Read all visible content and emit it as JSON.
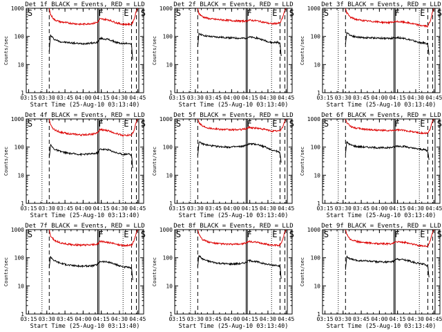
{
  "chart_data": {
    "type": "line",
    "layout": "3x3 grid",
    "y_axis": {
      "label": "Counts/sec",
      "scale": "log",
      "ylim": [
        1,
        1000
      ],
      "tick_labels": [
        "1",
        "10",
        "100",
        "1000"
      ]
    },
    "x_axis": {
      "label": "Start Time (25-Aug-10 03:13:40)",
      "range_minutes_after_0313": [
        0,
        97
      ],
      "tick_labels": [
        "03:15",
        "03:30",
        "03:45",
        "04:00",
        "04:15",
        "04:30",
        "04:45"
      ],
      "tick_minutes": [
        2,
        17,
        32,
        47,
        62,
        77,
        92
      ]
    },
    "colors": {
      "events": "#000000",
      "lld": "#dd0000"
    },
    "markers": [
      {
        "label": "S",
        "minute": 0.5,
        "style": "solid"
      },
      {
        "label": "F",
        "minute": 59,
        "style": "solid"
      },
      {
        "label": "E",
        "minute": 80,
        "style": "solid"
      },
      {
        "label": "S",
        "minute": 94,
        "style": "solid"
      }
    ],
    "vlines": [
      {
        "minute": 13,
        "style": "dotted"
      },
      {
        "minute": 19,
        "style": "dashed"
      },
      {
        "minute": 59,
        "style": "solid"
      },
      {
        "minute": 60,
        "style": "solid"
      },
      {
        "minute": 80,
        "style": "dotted"
      },
      {
        "minute": 87,
        "style": "dashed"
      },
      {
        "minute": 91,
        "style": "dashed"
      },
      {
        "minute": 93,
        "style": "solid"
      }
    ],
    "panels": [
      {
        "title": "Det 1f BLACK = Events, RED = LLD",
        "series": [
          {
            "name": "Events",
            "color": "#000000",
            "x": [
              19,
              20,
              23,
              28,
              35,
              45,
              55,
              59,
              61,
              68,
              75,
              80,
              85,
              87,
              88
            ],
            "y": [
              30,
              110,
              80,
              65,
              60,
              55,
              58,
              62,
              85,
              78,
              60,
              55,
              58,
              50,
              15
            ]
          },
          {
            "name": "LLD",
            "color": "#dd0000",
            "x": [
              19,
              20,
              23,
              28,
              35,
              45,
              55,
              59,
              61,
              68,
              75,
              80,
              87,
              89,
              91,
              92
            ],
            "y": [
              1000,
              600,
              400,
              330,
              300,
              270,
              290,
              320,
              420,
              390,
              300,
              270,
              270,
              400,
              800,
              1000
            ]
          }
        ]
      },
      {
        "title": "Det 2f BLACK = Events, RED = LLD",
        "series": [
          {
            "name": "Events",
            "color": "#000000",
            "x": [
              19,
              20,
              23,
              28,
              35,
              45,
              55,
              59,
              61,
              68,
              75,
              80,
              85,
              87,
              88
            ],
            "y": [
              40,
              130,
              110,
              100,
              95,
              90,
              85,
              88,
              95,
              88,
              70,
              60,
              62,
              55,
              20
            ]
          },
          {
            "name": "LLD",
            "color": "#dd0000",
            "x": [
              19,
              20,
              23,
              28,
              35,
              45,
              55,
              59,
              61,
              68,
              75,
              80,
              87,
              89,
              91,
              92
            ],
            "y": [
              1000,
              650,
              500,
              430,
              400,
              370,
              350,
              350,
              380,
              360,
              310,
              280,
              300,
              450,
              850,
              1000
            ]
          }
        ]
      },
      {
        "title": "Det 3f BLACK = Events, RED = LLD",
        "series": [
          {
            "name": "Events",
            "color": "#000000",
            "x": [
              19,
              20,
              23,
              28,
              35,
              45,
              55,
              59,
              61,
              68,
              75,
              80,
              85,
              87,
              88
            ],
            "y": [
              50,
              140,
              110,
              95,
              90,
              88,
              85,
              88,
              92,
              85,
              70,
              60,
              58,
              52,
              22
            ]
          },
          {
            "name": "LLD",
            "color": "#dd0000",
            "x": [
              19,
              20,
              23,
              28,
              35,
              45,
              55,
              59,
              61,
              68,
              75,
              80,
              87,
              89,
              91,
              92
            ],
            "y": [
              1000,
              700,
              480,
              400,
              360,
              330,
              310,
              320,
              340,
              320,
              280,
              250,
              230,
              350,
              750,
              1000
            ]
          }
        ]
      },
      {
        "title": "Det 4f BLACK = Events, RED = LLD",
        "series": [
          {
            "name": "Events",
            "color": "#000000",
            "x": [
              19,
              20,
              23,
              28,
              35,
              45,
              55,
              59,
              61,
              68,
              75,
              80,
              85,
              87,
              88
            ],
            "y": [
              40,
              120,
              85,
              70,
              60,
              55,
              58,
              62,
              85,
              80,
              62,
              55,
              58,
              50,
              18
            ]
          },
          {
            "name": "LLD",
            "color": "#dd0000",
            "x": [
              19,
              20,
              23,
              28,
              35,
              45,
              55,
              59,
              61,
              68,
              75,
              80,
              87,
              89,
              91,
              92
            ],
            "y": [
              1000,
              600,
              420,
              340,
              300,
              270,
              290,
              320,
              420,
              380,
              300,
              260,
              270,
              380,
              800,
              1000
            ]
          }
        ]
      },
      {
        "title": "Det 5f BLACK = Events, RED = LLD",
        "series": [
          {
            "name": "Events",
            "color": "#000000",
            "x": [
              19,
              20,
              23,
              28,
              35,
              45,
              55,
              59,
              61,
              68,
              75,
              80,
              85,
              87,
              88
            ],
            "y": [
              50,
              150,
              130,
              115,
              105,
              100,
              105,
              115,
              130,
              125,
              100,
              80,
              70,
              60,
              28
            ]
          },
          {
            "name": "LLD",
            "color": "#dd0000",
            "x": [
              19,
              20,
              23,
              28,
              35,
              45,
              55,
              59,
              61,
              68,
              75,
              80,
              87,
              89,
              91,
              92
            ],
            "y": [
              1000,
              750,
              560,
              480,
              440,
              410,
              420,
              450,
              500,
              470,
              420,
              370,
              380,
              500,
              850,
              1000
            ]
          }
        ]
      },
      {
        "title": "Det 6f BLACK = Events, RED = LLD",
        "series": [
          {
            "name": "Events",
            "color": "#000000",
            "x": [
              19,
              20,
              23,
              28,
              35,
              45,
              55,
              59,
              61,
              68,
              75,
              80,
              85,
              87,
              88
            ],
            "y": [
              60,
              150,
              120,
              105,
              100,
              95,
              95,
              100,
              110,
              105,
              90,
              85,
              80,
              70,
              35
            ]
          },
          {
            "name": "LLD",
            "color": "#dd0000",
            "x": [
              19,
              20,
              23,
              28,
              35,
              45,
              55,
              59,
              61,
              68,
              75,
              80,
              87,
              89,
              91,
              92
            ],
            "y": [
              1000,
              750,
              550,
              470,
              430,
              400,
              380,
              390,
              410,
              390,
              350,
              320,
              310,
              450,
              850,
              1000
            ]
          }
        ]
      },
      {
        "title": "Det 7f BLACK = Events, RED = LLD",
        "series": [
          {
            "name": "Events",
            "color": "#000000",
            "x": [
              19,
              20,
              23,
              28,
              35,
              45,
              55,
              59,
              61,
              68,
              75,
              80,
              85,
              87,
              88
            ],
            "y": [
              45,
              110,
              80,
              65,
              55,
              50,
              52,
              58,
              75,
              70,
              55,
              48,
              45,
              40,
              16
            ]
          },
          {
            "name": "LLD",
            "color": "#dd0000",
            "x": [
              19,
              20,
              23,
              28,
              35,
              45,
              55,
              59,
              61,
              68,
              75,
              80,
              87,
              89,
              91,
              92
            ],
            "y": [
              1000,
              600,
              420,
              340,
              300,
              280,
              290,
              310,
              380,
              350,
              300,
              270,
              280,
              400,
              800,
              1000
            ]
          }
        ]
      },
      {
        "title": "Det 8f BLACK = Events, RED = LLD",
        "series": [
          {
            "name": "Events",
            "color": "#000000",
            "x": [
              19,
              20,
              23,
              28,
              35,
              45,
              55,
              59,
              61,
              68,
              75,
              80,
              85,
              87,
              88
            ],
            "y": [
              50,
              120,
              90,
              75,
              65,
              60,
              62,
              68,
              80,
              72,
              60,
              55,
              55,
              48,
              18
            ]
          },
          {
            "name": "LLD",
            "color": "#dd0000",
            "x": [
              19,
              20,
              23,
              28,
              35,
              45,
              55,
              59,
              61,
              68,
              75,
              80,
              87,
              89,
              91,
              92
            ],
            "y": [
              1000,
              700,
              450,
              360,
              320,
              300,
              310,
              330,
              380,
              350,
              310,
              280,
              280,
              420,
              820,
              1000
            ]
          }
        ]
      },
      {
        "title": "Det 9f BLACK = Events, RED = LLD",
        "series": [
          {
            "name": "Events",
            "color": "#000000",
            "x": [
              19,
              20,
              23,
              28,
              35,
              45,
              55,
              59,
              61,
              68,
              75,
              80,
              85,
              87,
              88
            ],
            "y": [
              40,
              110,
              90,
              80,
              78,
              72,
              70,
              75,
              90,
              85,
              70,
              62,
              58,
              50,
              20
            ]
          },
          {
            "name": "LLD",
            "color": "#dd0000",
            "x": [
              19,
              20,
              23,
              28,
              35,
              45,
              55,
              59,
              61,
              68,
              75,
              80,
              87,
              89,
              91,
              92
            ],
            "y": [
              1000,
              700,
              450,
              380,
              350,
              320,
              310,
              330,
              380,
              350,
              300,
              270,
              260,
              400,
              820,
              1000
            ]
          }
        ]
      }
    ]
  }
}
